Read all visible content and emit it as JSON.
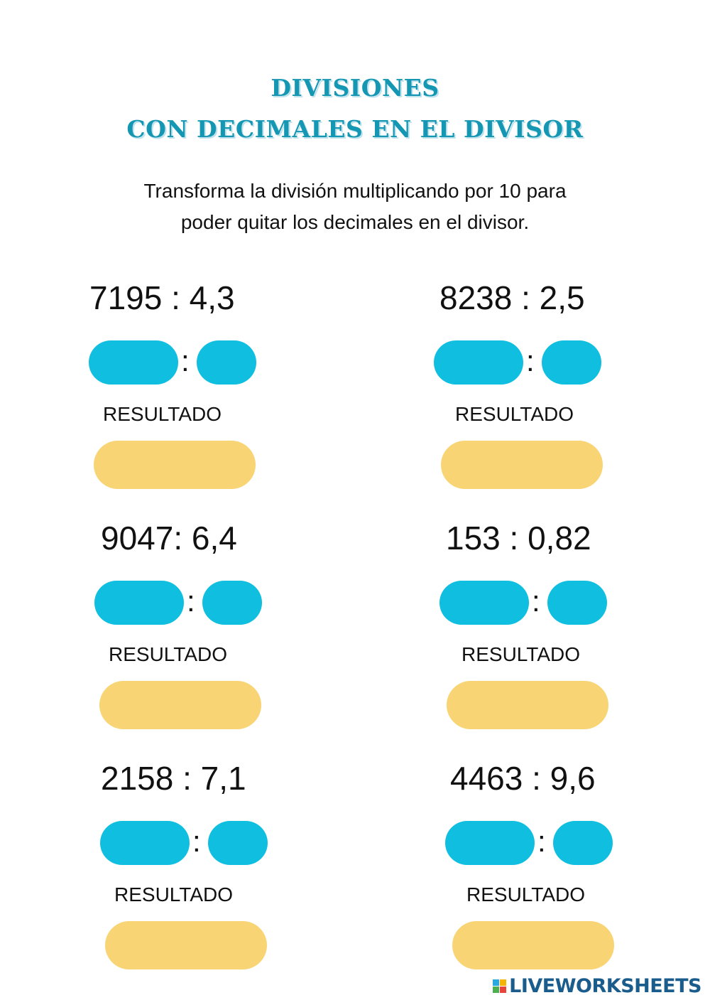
{
  "header": {
    "title_line1": "DIVISIONES",
    "title_line2": "CON DECIMALES EN EL DIVISOR"
  },
  "instructions": {
    "line1": "Transforma la división multiplicando por 10 para",
    "line2": "poder quitar los decimales en el divisor."
  },
  "problems": [
    {
      "expression": "7195 : 4,3",
      "colon": ":",
      "result_label": "RESULTADO"
    },
    {
      "expression": "8238 : 2,5",
      "colon": ":",
      "result_label": "RESULTADO"
    },
    {
      "expression": "9047: 6,4",
      "colon": ":",
      "result_label": "RESULTADO"
    },
    {
      "expression": "153 : 0,82",
      "colon": ":",
      "result_label": "RESULTADO"
    },
    {
      "expression": "2158 : 7,1",
      "colon": ":",
      "result_label": "RESULTADO"
    },
    {
      "expression": "4463 : 9,6",
      "colon": ":",
      "result_label": "RESULTADO"
    }
  ],
  "footer": {
    "brand": "LIVEWORKSHEETS",
    "icon": "liveworksheets-logo-icon"
  },
  "colors": {
    "title": "#1597b4",
    "answer_pill": "#10bfe0",
    "result_box": "#f8d474",
    "brand": "#1a5c8c"
  }
}
